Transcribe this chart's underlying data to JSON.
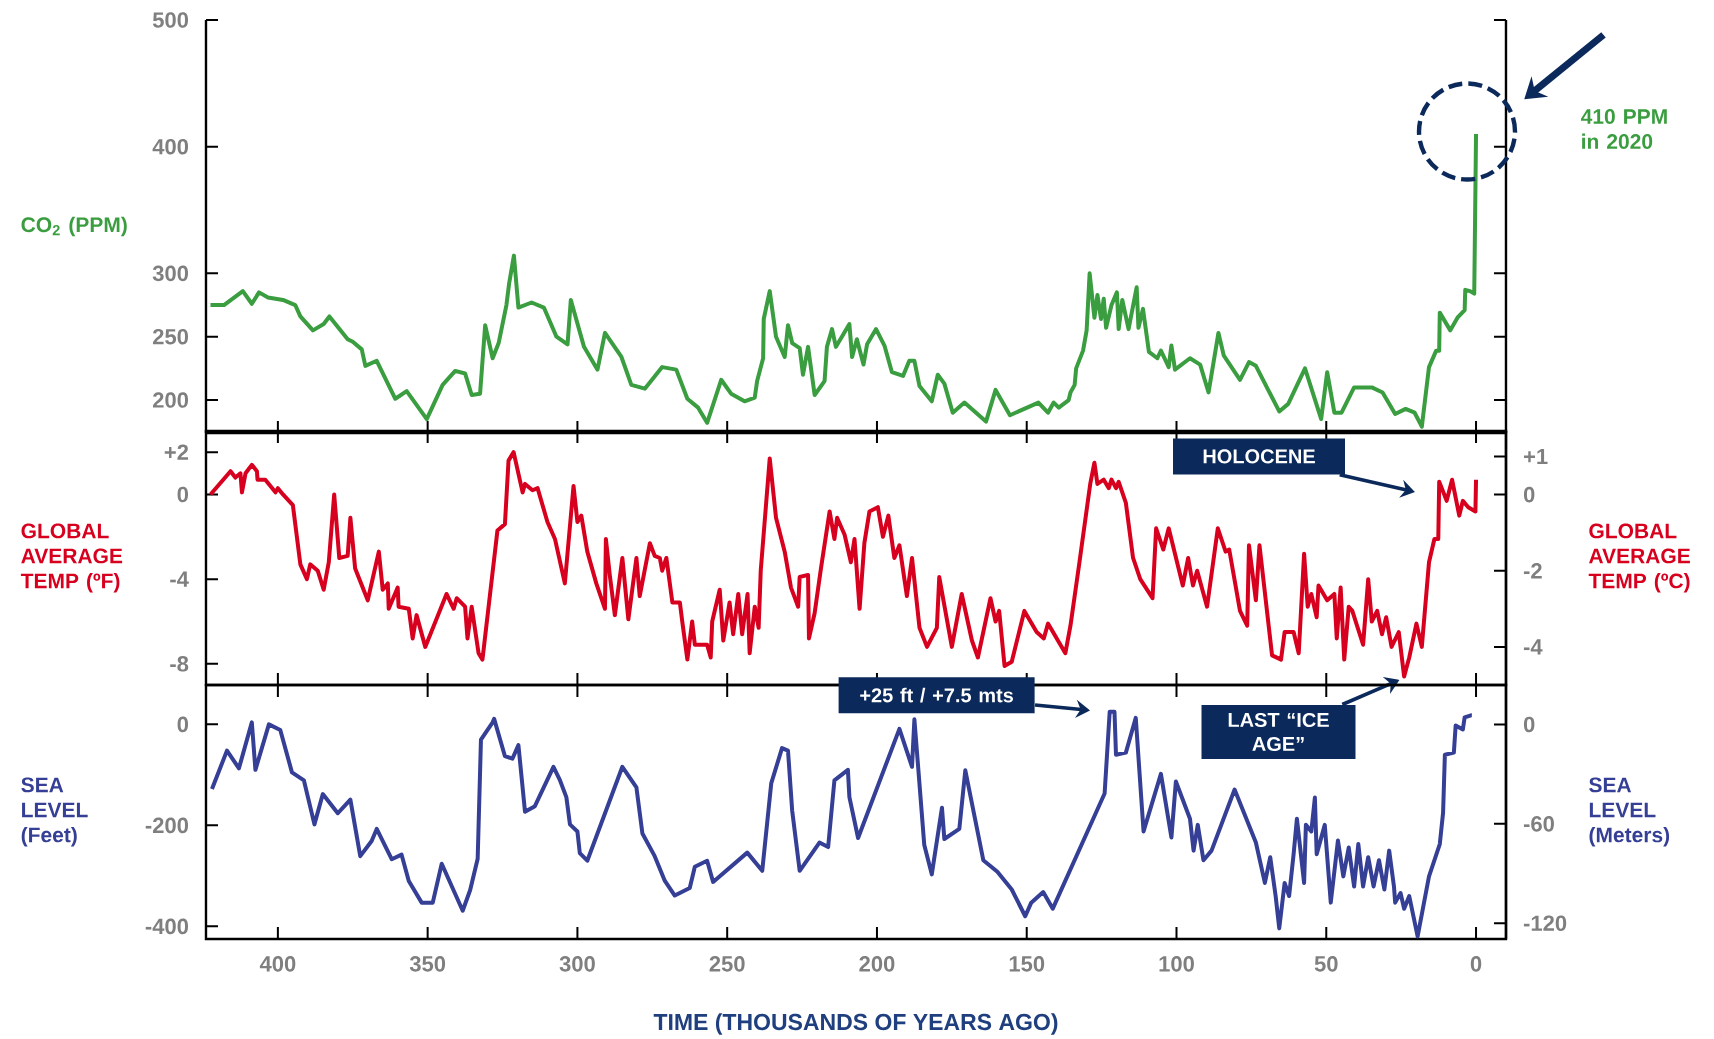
{
  "chart_data": [
    {
      "type": "line",
      "ylabel": "CO$_{2}$ (PPM)",
      "xlim": [
        424,
        -10
      ],
      "xticks": [
        400,
        350,
        300,
        250,
        200,
        150,
        100,
        50,
        0
      ],
      "ylim": [
        174,
        500
      ],
      "yticks": [
        200,
        250,
        300,
        400,
        500
      ],
      "tick_labels": "y",
      "x": [
        422.5,
        418,
        411.7,
        408.7,
        406.3,
        403.3,
        398.3,
        394.2,
        392.5,
        388.3,
        384.7,
        382.8,
        376.7,
        375,
        372,
        370.8,
        367,
        360.8,
        357,
        350.3,
        345,
        340.8,
        337.5,
        335.3,
        332.5,
        330.8,
        328.3,
        326.3,
        323.7,
        322.8,
        321.2,
        319.7,
        315.3,
        311.2,
        307,
        303.3,
        302.2,
        297.8,
        293.3,
        290.8,
        285.3,
        282,
        277.5,
        271.7,
        267,
        263.3,
        259.7,
        256.7,
        252,
        248.7,
        244.2,
        240.8,
        240,
        238,
        237.8,
        235.8,
        233.7,
        230.8,
        229.7,
        228.3,
        225.8,
        224.7,
        223,
        220.8,
        217.5,
        216.7,
        215,
        213.7,
        211.7,
        209.2,
        208.3,
        206.7,
        204.5,
        203.3,
        200.3,
        197.5,
        195,
        191.3,
        189.2,
        187.5,
        185.8,
        181.7,
        179.7,
        177.5,
        174.7,
        170.8,
        163.6,
        160.4,
        155.6,
        146.1,
        142.9,
        141,
        139.3,
        136,
        135.4,
        134,
        133.5,
        131.2,
        130,
        129,
        127.4,
        126.4,
        125.2,
        124.3,
        123.5,
        121.7,
        119.9,
        119.3,
        118.1,
        116,
        113.3,
        112.7,
        111.2,
        109.2,
        106.4,
        105.2,
        102.6,
        101.7,
        100.5,
        95.5,
        92.1,
        89.3,
        86,
        84.2,
        78.8,
        75.8,
        73.5,
        65.7,
        62.7,
        57.1,
        51.7,
        49.7,
        47.3,
        44.9,
        40.7,
        34.8,
        31.2,
        27,
        23.5,
        20.5,
        18.1,
        15.7,
        13.3,
        12.3,
        12.1,
        8.6,
        6.2,
        3.8,
        3.6,
        2,
        0.6,
        0
      ],
      "series": [
        {
          "color": "#3a9d3f",
          "values": [
            275,
            275,
            286,
            276,
            285,
            281,
            279,
            275,
            266,
            255,
            260,
            266,
            248,
            246,
            240,
            227,
            231,
            201,
            207,
            185,
            212,
            223,
            221,
            204,
            205,
            259,
            233,
            245,
            275,
            292,
            314,
            273,
            277,
            273,
            250,
            244,
            279,
            242,
            224,
            253,
            234,
            212,
            209,
            226,
            224,
            201,
            194,
            182,
            216,
            205,
            199,
            202,
            215,
            233,
            264,
            286,
            250,
            234,
            259,
            245,
            241,
            220,
            242,
            204,
            215,
            242,
            256,
            242,
            250,
            260,
            234,
            248,
            228,
            244,
            256,
            243,
            222,
            219,
            231,
            231,
            211,
            199,
            220,
            213,
            190,
            198,
            183,
            208,
            188,
            198,
            190,
            198,
            194,
            200,
            206,
            212,
            225,
            239,
            255,
            300,
            265,
            283,
            264,
            280,
            257,
            275,
            285,
            256,
            279,
            256,
            289,
            257,
            272,
            238,
            233,
            239,
            226,
            243,
            224,
            233,
            228,
            206,
            253,
            235,
            216,
            230,
            227,
            191,
            197,
            225,
            185,
            222,
            190,
            190,
            210,
            210,
            206,
            189,
            193,
            190,
            179,
            226,
            239,
            239,
            269,
            255,
            265,
            271,
            287,
            286,
            284,
            410
          ]
        }
      ],
      "annotations": [
        "410 PPM in 2020"
      ]
    },
    {
      "type": "line",
      "ylabel": "GLOBAL AVERAGE TEMP (ºF)",
      "y2label": "GLOBAL AVERAGE TEMP (ºC)",
      "xlim": [
        424,
        -10
      ],
      "xticks": [
        400,
        350,
        300,
        250,
        200,
        150,
        100,
        50,
        0
      ],
      "ylim": [
        -9,
        3
      ],
      "yticks": [
        {
          "value": 2,
          "label": "+2"
        },
        0,
        -4,
        -8
      ],
      "y2lim": [
        -5,
        1.67
      ],
      "y2ticks": [
        {
          "value": 1,
          "label": "+1"
        },
        0,
        -2,
        -4
      ],
      "tick_labels": "y",
      "x": [
        422.5,
        415.8,
        414.2,
        412.5,
        412,
        410.8,
        408.7,
        407,
        406.8,
        404.2,
        400.8,
        400,
        398.3,
        395,
        392.5,
        390.3,
        389.2,
        386.7,
        384.7,
        383,
        381.2,
        379.5,
        376.7,
        375.8,
        374.2,
        370,
        366.3,
        365,
        363.3,
        363,
        360,
        359.7,
        356.3,
        355,
        353.7,
        350.8,
        343.7,
        341.3,
        340.3,
        337.5,
        336.7,
        335.3,
        333,
        331.7,
        326.7,
        324.2,
        323,
        321.3,
        318.3,
        317.5,
        315,
        313.3,
        310,
        307.5,
        304.2,
        301.3,
        300,
        298.7,
        296.7,
        293.7,
        290.8,
        290.5,
        289.2,
        287.5,
        285,
        283,
        280.3,
        279.2,
        275.8,
        274.2,
        272.5,
        271.7,
        270.3,
        268.3,
        265.8,
        265,
        263.3,
        261.7,
        260.8,
        256.7,
        255.5,
        255,
        252.5,
        251.3,
        249.2,
        248,
        246.3,
        245,
        243.2,
        242.5,
        240.8,
        239.5,
        238.8,
        235.8,
        233.7,
        230.8,
        228.7,
        226.3,
        225.8,
        223,
        222.7,
        220.8,
        218.7,
        215.8,
        214.2,
        213.3,
        210.8,
        208.7,
        207.5,
        205.8,
        204.2,
        202.5,
        199.7,
        198,
        196.2,
        194.2,
        192.5,
        190,
        188.3,
        185.8,
        183.3,
        180,
        179.2,
        175,
        171.7,
        168.3,
        166.3,
        162.1,
        160.4,
        159.2,
        157.4,
        155,
        150.8,
        146.7,
        144.3,
        142.9,
        137.1,
        135.4,
        132.4,
        128.8,
        127.4,
        126.4,
        124.3,
        122.6,
        121.7,
        120.2,
        119.3,
        116.9,
        114.5,
        112.1,
        108,
        106.8,
        104.4,
        102.6,
        97.9,
        96.1,
        94.5,
        93.1,
        89.8,
        86.2,
        83.6,
        82.4,
        78.8,
        76.4,
        75.8,
        73.5,
        72.3,
        68.1,
        65.1,
        63.9,
        60.9,
        59.2,
        57.4,
        56.2,
        55,
        53.2,
        52.6,
        49.7,
        47.3,
        46.5,
        45.2,
        44,
        42.5,
        41.3,
        37.7,
        36,
        34.8,
        33,
        31.4,
        30,
        28.2,
        25.8,
        24,
        22.3,
        19.9,
        18.1,
        15.7,
        13.9,
        12.6,
        12.3,
        9.8,
        8,
        5.6,
        4.4,
        2.6,
        0.2,
        0
      ],
      "series": [
        {
          "color": "#d7001e",
          "values": [
            0,
            1.1,
            0.8,
            1.0,
            0.1,
            1.0,
            1.4,
            1.1,
            0.7,
            0.7,
            0.1,
            0.3,
            0,
            -0.5,
            -3.3,
            -4.0,
            -3.3,
            -3.6,
            -4.5,
            -3.2,
            0,
            -3.0,
            -2.9,
            -1.1,
            -3.5,
            -5.0,
            -2.7,
            -4.5,
            -4.2,
            -5.4,
            -4.4,
            -5.3,
            -5.4,
            -6.8,
            -5.7,
            -7.2,
            -4.7,
            -5.4,
            -4.9,
            -5.3,
            -6.8,
            -5.3,
            -7.5,
            -7.8,
            -1.7,
            -1.4,
            1.6,
            2.0,
            0.1,
            0.5,
            0.2,
            0.3,
            -1.3,
            -2.1,
            -4.2,
            0.4,
            -1.3,
            -1.0,
            -2.7,
            -4.2,
            -5.4,
            -2.1,
            -3.8,
            -5.7,
            -3.0,
            -5.9,
            -3.0,
            -4.8,
            -2.3,
            -2.9,
            -3.0,
            -3.6,
            -3.0,
            -5.1,
            -5.1,
            -6.0,
            -7.8,
            -6.0,
            -7.1,
            -7.1,
            -7.7,
            -6.0,
            -4.5,
            -6.9,
            -5.1,
            -6.6,
            -4.7,
            -6.6,
            -4.7,
            -7.5,
            -5.3,
            -6.3,
            -3.6,
            1.7,
            -1.1,
            -2.7,
            -4.4,
            -5.3,
            -3.9,
            -3.8,
            -6.8,
            -5.6,
            -3.5,
            -0.8,
            -2.1,
            -1.1,
            -1.9,
            -3.2,
            -2.1,
            -5.4,
            -2.3,
            -0.8,
            -0.6,
            -2.0,
            -1.0,
            -3.0,
            -2.4,
            -4.8,
            -3.0,
            -6.3,
            -7.2,
            -6.3,
            -3.9,
            -7.2,
            -4.7,
            -6.9,
            -7.7,
            -4.9,
            -6.0,
            -5.5,
            -8.1,
            -7.9,
            -5.5,
            -6.5,
            -6.8,
            -6.1,
            -7.5,
            -6.2,
            -3.2,
            0.5,
            1.5,
            0.5,
            0.7,
            0.3,
            0.7,
            0.3,
            0.6,
            -0.4,
            -3.0,
            -4.0,
            -4.9,
            -1.6,
            -2.6,
            -1.6,
            -4.3,
            -3.0,
            -4.3,
            -3.6,
            -5.3,
            -1.6,
            -2.7,
            -2.6,
            -5.5,
            -6.2,
            -2.4,
            -5.0,
            -2.4,
            -7.6,
            -7.8,
            -6.5,
            -6.5,
            -7.5,
            -2.8,
            -5.3,
            -4.7,
            -5.8,
            -4.3,
            -5.0,
            -4.7,
            -6.8,
            -4.4,
            -7.8,
            -5.3,
            -5.5,
            -7.1,
            -4.0,
            -6.0,
            -5.5,
            -6.6,
            -5.8,
            -7.2,
            -6.5,
            -8.6,
            -7.7,
            -6.1,
            -7.2,
            -3.2,
            -2.1,
            -2.1,
            0.6,
            -0.3,
            0.7,
            -1.0,
            -0.3,
            -0.6,
            -0.8,
            0.7
          ]
        }
      ],
      "annotations": [
        "HOLOCENE",
        "LAST “ICE AGE”"
      ]
    },
    {
      "type": "line",
      "xlabel": "TIME (THOUSANDS OF YEARS AGO)",
      "ylabel": "SEA LEVEL (Feet)",
      "y2label": "SEA LEVEL (Meters)",
      "xlim": [
        424,
        -10
      ],
      "xticks": [
        400,
        350,
        300,
        250,
        200,
        150,
        100,
        50,
        0
      ],
      "ylim": [
        -425,
        78
      ],
      "yticks": [
        0,
        -200,
        -400
      ],
      "y2lim": [
        -129.5,
        23.8
      ],
      "y2ticks": [
        0,
        -60,
        -120
      ],
      "x": [
        422,
        417,
        413,
        408.7,
        407.5,
        403,
        399.2,
        395.3,
        391.3,
        387.8,
        385,
        380,
        375.8,
        372.5,
        368.7,
        367,
        362,
        358.7,
        356.3,
        352,
        348.3,
        345.3,
        338.3,
        335.8,
        333.3,
        332.2,
        328.3,
        327.8,
        324.2,
        321.7,
        319.7,
        317.5,
        314.2,
        308,
        305.8,
        303.7,
        302.5,
        300,
        299.2,
        296.7,
        285,
        280.3,
        278.3,
        274.2,
        270.8,
        267.5,
        262.5,
        260.8,
        256.7,
        254.7,
        243.3,
        238.3,
        235.3,
        231.7,
        229.7,
        228.3,
        225.8,
        219.2,
        216.3,
        214.2,
        209.7,
        209.2,
        206.3,
        192.5,
        188.3,
        187.5,
        184.2,
        181.7,
        178.3,
        177.5,
        172.5,
        170.5,
        164.5,
        159.8,
        155,
        150.5,
        148.5,
        144.5,
        141.3,
        124,
        122.3,
        120.7,
        120.2,
        116.9,
        113.6,
        111,
        105.2,
        101.7,
        100.2,
        95.5,
        94.3,
        92.9,
        91,
        88.3,
        80.6,
        73.5,
        70.5,
        68.7,
        66.9,
        65.7,
        63.9,
        62.4,
        60.9,
        59.8,
        57.4,
        56.8,
        55,
        53.8,
        53.2,
        50.5,
        48.5,
        46.1,
        44.3,
        42.5,
        40.7,
        39.3,
        37.7,
        36,
        34.2,
        32.4,
        30.6,
        29,
        27.4,
        27,
        25.2,
        24,
        22.3,
        19.5,
        15.7,
        12.1,
        11,
        10.4,
        7.4,
        6.8,
        4.4,
        3.8,
        1.7,
        1.4
      ],
      "series": [
        {
          "color": "#353f95",
          "values": [
            -128,
            -52,
            -87,
            4,
            -90,
            0,
            -11,
            -95,
            -111,
            -198,
            -138,
            -176,
            -149,
            -261,
            -231,
            -207,
            -267,
            -258,
            -310,
            -353,
            -353,
            -276,
            -369,
            -328,
            -266,
            -30,
            4,
            11,
            -63,
            -68,
            -41,
            -173,
            -162,
            -84,
            -111,
            -144,
            -198,
            -212,
            -255,
            -270,
            -84,
            -125,
            -216,
            -261,
            -310,
            -339,
            -324,
            -282,
            -270,
            -312,
            -254,
            -290,
            -117,
            -47,
            -52,
            -171,
            -290,
            -234,
            -243,
            -111,
            -90,
            -144,
            -225,
            -9,
            -84,
            10,
            -239,
            -297,
            -165,
            -227,
            -207,
            -91,
            -269,
            -292,
            -327,
            -380,
            -353,
            -332,
            -365,
            -137,
            25,
            25,
            -60,
            -56,
            13,
            -212,
            -98,
            -224,
            -113,
            -187,
            -250,
            -199,
            -269,
            -250,
            -129,
            -234,
            -314,
            -263,
            -340,
            -404,
            -314,
            -340,
            -257,
            -187,
            -314,
            -199,
            -212,
            -145,
            -257,
            -199,
            -353,
            -230,
            -301,
            -244,
            -321,
            -237,
            -321,
            -263,
            -321,
            -269,
            -327,
            -250,
            -321,
            -353,
            -334,
            -365,
            -340,
            -420,
            -301,
            -237,
            -175,
            -60,
            -56,
            -2,
            -10,
            14,
            18,
            18
          ]
        }
      ],
      "annotations": [
        "+25 ft / +7.5 mts"
      ]
    }
  ]
}
